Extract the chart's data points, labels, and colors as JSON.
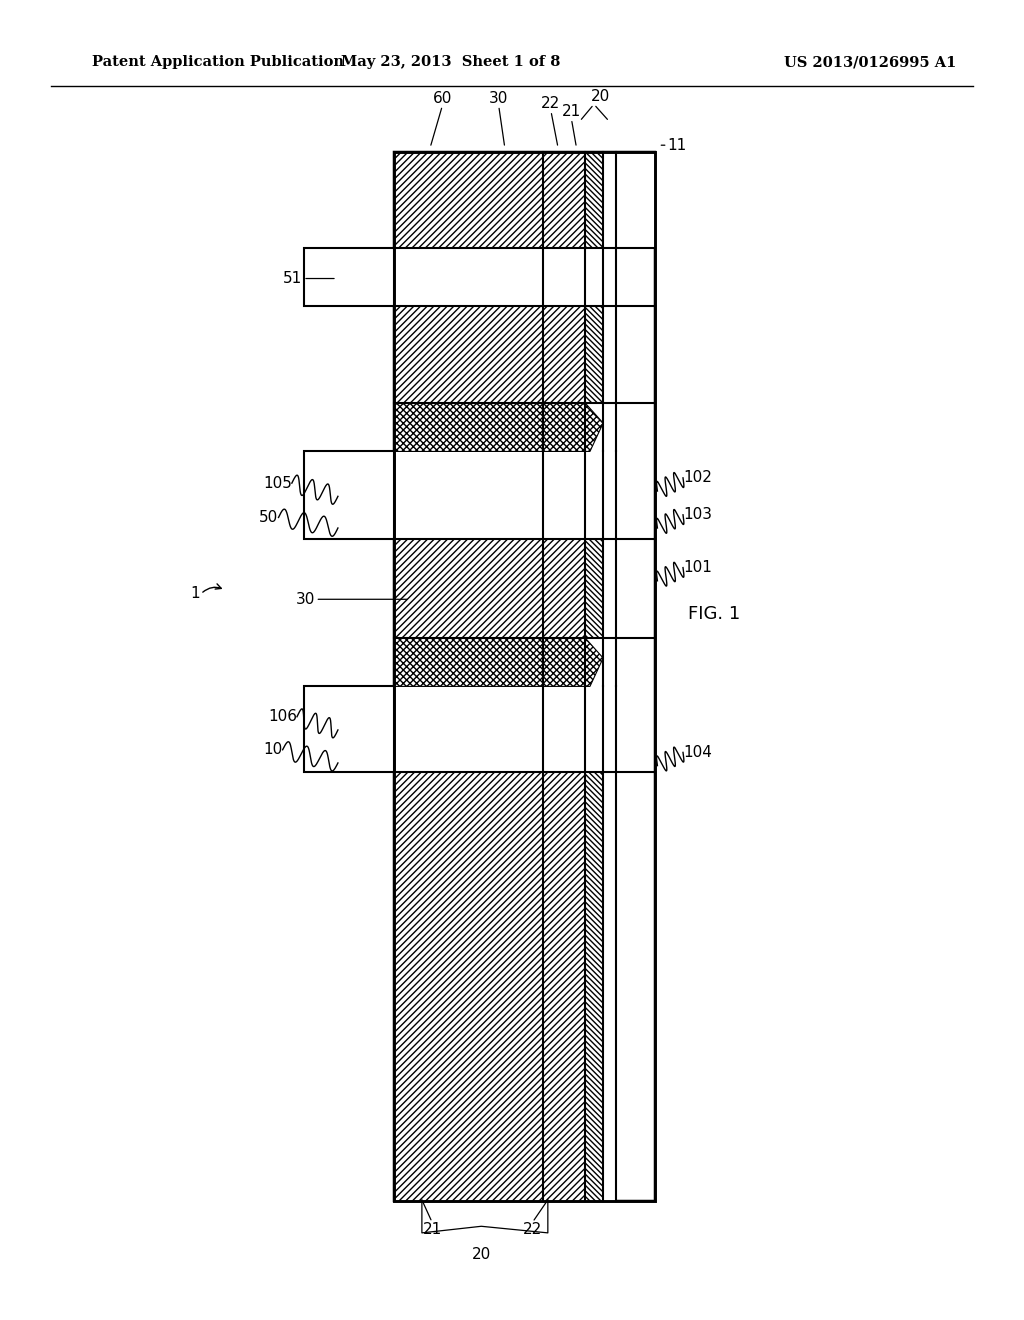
{
  "bg_color": "#ffffff",
  "header_left": "Patent Application Publication",
  "header_center": "May 23, 2013  Sheet 1 of 8",
  "header_right": "US 2013/0126995 A1",
  "fig_label": "FIG. 1"
}
